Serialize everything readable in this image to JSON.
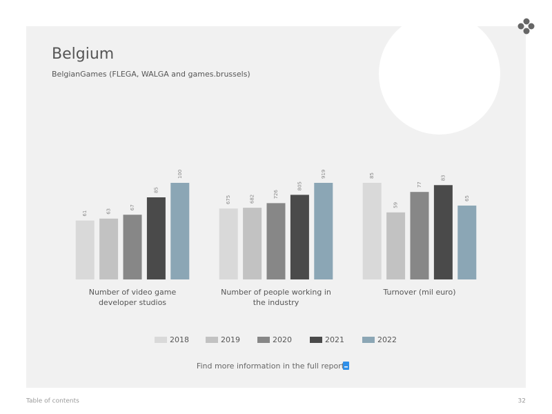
{
  "title": "Belgium",
  "subtitle": "BelgianGames (FLEGA, WALGA and games.brussels)",
  "chart_data": {
    "type": "bar",
    "categories": [
      "Number of video game developer studios",
      "Number of people working in the industry",
      "Turnover (mil euro)"
    ],
    "series": [
      {
        "name": "2018",
        "color": "#d9d9d9",
        "values": [
          61,
          675,
          85
        ]
      },
      {
        "name": "2019",
        "color": "#c2c2c2",
        "values": [
          63,
          682,
          59
        ]
      },
      {
        "name": "2020",
        "color": "#878787",
        "values": [
          67,
          726,
          77
        ]
      },
      {
        "name": "2021",
        "color": "#4a4a4a",
        "values": [
          85,
          805,
          83
        ]
      },
      {
        "name": "2022",
        "color": "#8ba6b5",
        "values": [
          100,
          919,
          65
        ]
      }
    ]
  },
  "link_text": "Find more information in the full report",
  "footer": {
    "left": "Table of contents",
    "page": "32"
  }
}
